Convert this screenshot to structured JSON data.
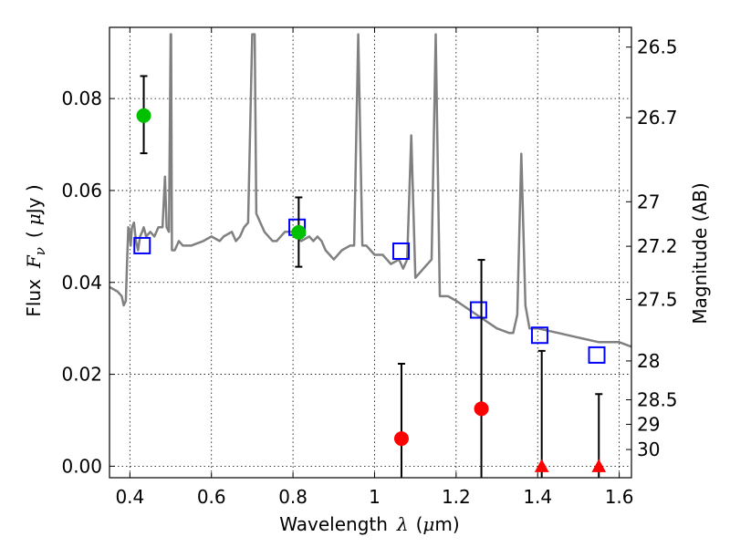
{
  "chart_data": {
    "type": "scatter",
    "title": "",
    "xlabel": "Wavelength",
    "xlabel_symbol": "λ",
    "xlabel_unit_open": "(",
    "xlabel_unit_mu": "μ",
    "xlabel_unit_rest": "m)",
    "ylabel": "Flux",
    "ylabel_symbol": "F",
    "ylabel_subscript": "ν",
    "ylabel_unit_open": "(",
    "ylabel_unit_mu": "μ",
    "ylabel_unit_rest": "Jy )",
    "y2label": "Magnitude (AB)",
    "xlim": [
      0.35,
      1.63
    ],
    "ylim": [
      -0.0025,
      0.0955
    ],
    "grid": true,
    "x_ticks": [
      {
        "value": 0.4,
        "label": "0.4"
      },
      {
        "value": 0.6,
        "label": "0.6"
      },
      {
        "value": 0.8,
        "label": "0.8"
      },
      {
        "value": 1.0,
        "label": "1"
      },
      {
        "value": 1.2,
        "label": "1.2"
      },
      {
        "value": 1.4,
        "label": "1.4"
      },
      {
        "value": 1.6,
        "label": "1.6"
      }
    ],
    "y_ticks": [
      {
        "value": 0.0,
        "label": "0.00"
      },
      {
        "value": 0.02,
        "label": "0.02"
      },
      {
        "value": 0.04,
        "label": "0.04"
      },
      {
        "value": 0.06,
        "label": "0.06"
      },
      {
        "value": 0.08,
        "label": "0.08"
      }
    ],
    "magnitude_ticks": [
      {
        "mag": 26.5,
        "label": "26.5"
      },
      {
        "mag": 26.7,
        "label": "26.7"
      },
      {
        "mag": 27.0,
        "label": "27"
      },
      {
        "mag": 27.2,
        "label": "27.2"
      },
      {
        "mag": 27.5,
        "label": "27.5"
      },
      {
        "mag": 28.0,
        "label": "28"
      },
      {
        "mag": 28.5,
        "label": "28.5"
      },
      {
        "mag": 29.0,
        "label": "29"
      },
      {
        "mag": 30.0,
        "label": "30"
      }
    ],
    "series": [
      {
        "type": "line",
        "color": "#808080",
        "x": [
          0.35,
          0.37,
          0.38,
          0.385,
          0.39,
          0.393,
          0.396,
          0.399,
          0.402,
          0.405,
          0.41,
          0.415,
          0.42,
          0.425,
          0.43,
          0.434,
          0.44,
          0.45,
          0.46,
          0.47,
          0.48,
          0.486,
          0.49,
          0.496,
          0.5,
          0.501,
          0.503,
          0.51,
          0.52,
          0.53,
          0.55,
          0.58,
          0.6,
          0.62,
          0.63,
          0.65,
          0.66,
          0.67,
          0.68,
          0.69,
          0.7,
          0.706,
          0.71,
          0.72,
          0.73,
          0.74,
          0.75,
          0.76,
          0.78,
          0.8,
          0.81,
          0.82,
          0.84,
          0.85,
          0.86,
          0.87,
          0.88,
          0.89,
          0.9,
          0.92,
          0.94,
          0.95,
          0.96,
          0.97,
          0.98,
          0.99,
          1.0,
          1.02,
          1.04,
          1.06,
          1.07,
          1.08,
          1.09,
          1.1,
          1.12,
          1.14,
          1.15,
          1.16,
          1.18,
          1.2,
          1.25,
          1.3,
          1.33,
          1.34,
          1.35,
          1.36,
          1.37,
          1.38,
          1.4,
          1.45,
          1.5,
          1.55,
          1.6,
          1.63
        ],
        "y": [
          0.039,
          0.038,
          0.037,
          0.035,
          0.036,
          0.044,
          0.052,
          0.051,
          0.048,
          0.052,
          0.053,
          0.049,
          0.047,
          0.05,
          0.051,
          0.052,
          0.05,
          0.051,
          0.05,
          0.052,
          0.052,
          0.063,
          0.052,
          0.051,
          0.094,
          0.094,
          0.047,
          0.047,
          0.049,
          0.048,
          0.048,
          0.049,
          0.05,
          0.049,
          0.05,
          0.051,
          0.049,
          0.05,
          0.052,
          0.053,
          0.094,
          0.094,
          0.055,
          0.053,
          0.051,
          0.05,
          0.049,
          0.049,
          0.051,
          0.051,
          0.05,
          0.049,
          0.05,
          0.049,
          0.05,
          0.049,
          0.047,
          0.046,
          0.045,
          0.047,
          0.048,
          0.048,
          0.094,
          0.048,
          0.048,
          0.047,
          0.046,
          0.046,
          0.044,
          0.045,
          0.043,
          0.045,
          0.072,
          0.041,
          0.043,
          0.045,
          0.094,
          0.037,
          0.037,
          0.036,
          0.033,
          0.03,
          0.029,
          0.029,
          0.033,
          0.068,
          0.035,
          0.03,
          0.03,
          0.029,
          0.028,
          0.027,
          0.027,
          0.026
        ]
      },
      {
        "type": "markers",
        "marker": "open-square",
        "color": "#0000ff",
        "x": [
          0.43,
          0.81,
          1.065,
          1.255,
          1.405,
          1.545
        ],
        "y": [
          0.048,
          0.052,
          0.0468,
          0.034,
          0.0285,
          0.0242
        ]
      },
      {
        "type": "markers",
        "marker": "circle",
        "color": "#00c000",
        "x": [
          0.434,
          0.814
        ],
        "y": [
          0.0763,
          0.0509
        ],
        "yerr_low": [
          0.0681,
          0.0434
        ],
        "yerr_high": [
          0.0849,
          0.0585
        ]
      },
      {
        "type": "markers",
        "marker": "circle",
        "color": "#ff0000",
        "x": [
          1.066,
          1.262
        ],
        "y": [
          0.006,
          0.0125
        ],
        "yerr_low": [
          -0.0025,
          -0.0025
        ],
        "yerr_high": [
          0.0223,
          0.0449
        ]
      },
      {
        "type": "markers",
        "marker": "triangle-up",
        "color": "#ff0000",
        "x": [
          1.41,
          1.55
        ],
        "y": [
          0.0,
          0.0
        ],
        "yerr_low": [
          -0.0025,
          -0.0025
        ],
        "yerr_high": [
          0.0251,
          0.0157
        ]
      }
    ]
  }
}
